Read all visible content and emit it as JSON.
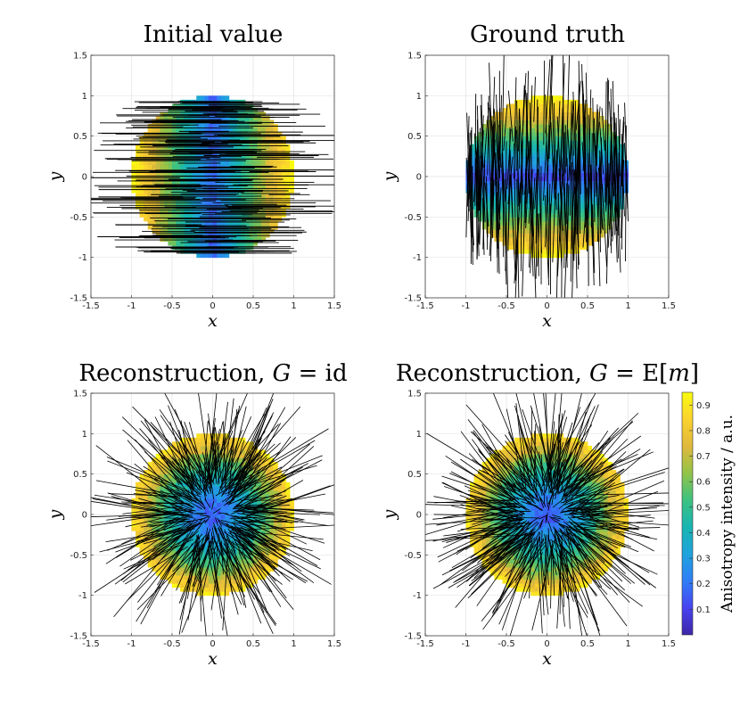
{
  "figure": {
    "colorbar_label": "Anisotropy intensity / a.u.",
    "colorbar_ticks": [
      "0.1",
      "0.2",
      "0.3",
      "0.4",
      "0.5",
      "0.6",
      "0.7",
      "0.8",
      "0.9"
    ],
    "colormap": [
      "#3e26a8",
      "#4743f0",
      "#2f7df7",
      "#1fa3de",
      "#18b5b2",
      "#3dc281",
      "#92c348",
      "#e0b93c",
      "#fbd22e",
      "#f9fb0e"
    ]
  },
  "chart_data": [
    {
      "type": "heatmap",
      "title": "Initial value",
      "xlabel": "x",
      "ylabel": "y",
      "xlim": [
        -1.5,
        1.5
      ],
      "ylim": [
        -1.5,
        1.5
      ],
      "xticks": [
        "-1.5",
        "-1",
        "-0.5",
        "0",
        "0.5",
        "1",
        "1.5"
      ],
      "yticks": [
        "-1.5",
        "-1",
        "-0.5",
        "0",
        "0.5",
        "1",
        "1.5"
      ],
      "grid": true,
      "domain": "unit disk",
      "fiber_orientation": "horizontal",
      "intensity_pattern": "low along vertical axis, high at left/right edges"
    },
    {
      "type": "heatmap",
      "title": "Ground truth",
      "xlabel": "x",
      "ylabel": "y",
      "xlim": [
        -1.5,
        1.5
      ],
      "ylim": [
        -1.5,
        1.5
      ],
      "xticks": [
        "-1.5",
        "-1",
        "-0.5",
        "0",
        "0.5",
        "1",
        "1.5"
      ],
      "yticks": [
        "-1.5",
        "-1",
        "-0.5",
        "0",
        "0.5",
        "1",
        "1.5"
      ],
      "grid": true,
      "domain": "unit disk",
      "fiber_orientation": "vertical",
      "intensity_pattern": "low along horizontal axis, high at top/bottom edges"
    },
    {
      "type": "heatmap",
      "title": "Reconstruction, G = id",
      "xlabel": "x",
      "ylabel": "y",
      "xlim": [
        -1.5,
        1.5
      ],
      "ylim": [
        -1.5,
        1.5
      ],
      "xticks": [
        "-1.5",
        "-1",
        "-0.5",
        "0",
        "0.5",
        "1",
        "1.5"
      ],
      "yticks": [
        "-1.5",
        "-1",
        "-0.5",
        "0",
        "0.5",
        "1",
        "1.5"
      ],
      "grid": true,
      "domain": "unit disk",
      "fiber_orientation": "radial",
      "intensity_pattern": "low at centre, high at rim"
    },
    {
      "type": "heatmap",
      "title": "Reconstruction, G = E[m]",
      "xlabel": "x",
      "ylabel": "y",
      "xlim": [
        -1.5,
        1.5
      ],
      "ylim": [
        -1.5,
        1.5
      ],
      "xticks": [
        "-1.5",
        "-1",
        "-0.5",
        "0",
        "0.5",
        "1",
        "1.5"
      ],
      "yticks": [
        "-1.5",
        "-1",
        "-0.5",
        "0",
        "0.5",
        "1",
        "1.5"
      ],
      "grid": true,
      "domain": "unit disk",
      "fiber_orientation": "radial",
      "intensity_pattern": "low at centre, high at rim"
    }
  ]
}
